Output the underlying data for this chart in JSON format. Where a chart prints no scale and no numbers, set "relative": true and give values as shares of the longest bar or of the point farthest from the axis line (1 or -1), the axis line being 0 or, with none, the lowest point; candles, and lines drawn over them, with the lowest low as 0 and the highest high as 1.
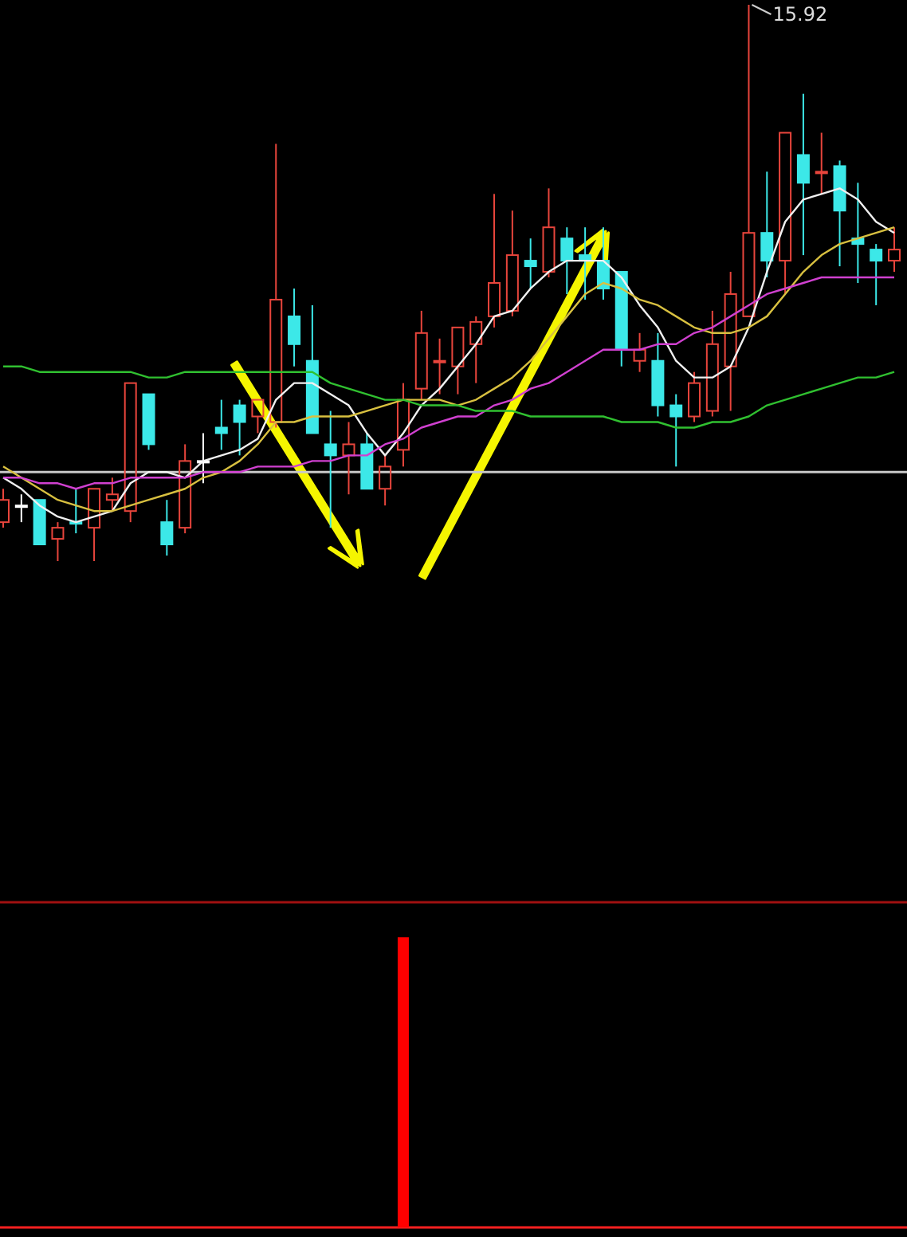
{
  "chart_data": [
    {
      "type": "candlestick",
      "relative": true,
      "tick_labels": false,
      "categories": [
        null,
        null,
        null,
        null,
        null,
        null,
        null,
        null,
        null,
        null,
        null,
        null,
        null,
        null,
        null,
        null,
        null,
        null,
        null,
        null,
        null,
        null,
        null,
        null,
        null,
        null,
        null,
        null,
        null,
        null,
        null,
        null,
        null,
        null,
        null,
        null,
        null,
        null,
        null,
        null,
        null,
        null,
        null,
        null,
        null,
        null,
        null,
        null,
        null,
        null
      ],
      "ohlc": [
        [
          0.07,
          0.13,
          0.06,
          0.11
        ],
        [
          0.1,
          0.12,
          0.07,
          0.1
        ],
        [
          0.11,
          0.11,
          0.03,
          0.03
        ],
        [
          0.04,
          0.07,
          0,
          0.06
        ],
        [
          0.07,
          0.13,
          0.05,
          0.07
        ],
        [
          0.06,
          0.13,
          0,
          0.13
        ],
        [
          0.11,
          0.15,
          0.09,
          0.12
        ],
        [
          0.09,
          0.32,
          0.07,
          0.32
        ],
        [
          0.3,
          0.3,
          0.2,
          0.21
        ],
        [
          0.07,
          0.11,
          0.01,
          0.03
        ],
        [
          0.06,
          0.21,
          0.05,
          0.18
        ],
        [
          0.18,
          0.23,
          0.14,
          0.18
        ],
        [
          0.24,
          0.29,
          0.2,
          0.23
        ],
        [
          0.28,
          0.29,
          0.19,
          0.25
        ],
        [
          0.26,
          0.29,
          0.23,
          0.29
        ],
        [
          0.25,
          0.75,
          0.24,
          0.47
        ],
        [
          0.44,
          0.49,
          0.35,
          0.39
        ],
        [
          0.36,
          0.46,
          0.23,
          0.23
        ],
        [
          0.21,
          0.27,
          0.06,
          0.19
        ],
        [
          0.19,
          0.25,
          0.12,
          0.21
        ],
        [
          0.21,
          0.23,
          0.13,
          0.13
        ],
        [
          0.13,
          0.19,
          0.1,
          0.17
        ],
        [
          0.2,
          0.32,
          0.17,
          0.29
        ],
        [
          0.31,
          0.45,
          0.29,
          0.41
        ],
        [
          0.36,
          0.4,
          0.3,
          0.36
        ],
        [
          0.35,
          0.42,
          0.3,
          0.42
        ],
        [
          0.39,
          0.44,
          0.32,
          0.43
        ],
        [
          0.44,
          0.66,
          0.42,
          0.5
        ],
        [
          0.45,
          0.63,
          0.44,
          0.55
        ],
        [
          0.54,
          0.58,
          0.49,
          0.53
        ],
        [
          0.52,
          0.67,
          0.51,
          0.6
        ],
        [
          0.58,
          0.6,
          0.48,
          0.54
        ],
        [
          0.55,
          0.6,
          0.47,
          0.54
        ],
        [
          0.54,
          0.6,
          0.47,
          0.49
        ],
        [
          0.52,
          0.52,
          0.35,
          0.38
        ],
        [
          0.36,
          0.41,
          0.34,
          0.38
        ],
        [
          0.36,
          0.41,
          0.26,
          0.28
        ],
        [
          0.28,
          0.3,
          0.17,
          0.26
        ],
        [
          0.26,
          0.34,
          0.25,
          0.32
        ],
        [
          0.27,
          0.45,
          0.26,
          0.39
        ],
        [
          0.35,
          0.52,
          0.27,
          0.48
        ],
        [
          0.44,
          1,
          0.44,
          0.59
        ],
        [
          0.59,
          0.7,
          0.51,
          0.54
        ],
        [
          0.54,
          0.77,
          0.48,
          0.77
        ],
        [
          0.73,
          0.84,
          0.55,
          0.68
        ],
        [
          0.7,
          0.77,
          0.66,
          0.7
        ],
        [
          0.71,
          0.72,
          0.53,
          0.63
        ],
        [
          0.58,
          0.68,
          0.5,
          0.57
        ],
        [
          0.56,
          0.57,
          0.46,
          0.54
        ],
        [
          0.54,
          0.6,
          0.52,
          0.56
        ]
      ],
      "colors": [
        "#e8453c",
        "#ffffff",
        "#3ce8e8",
        "#e8453c",
        "#3ce8e8",
        "#e8453c",
        "#e8453c",
        "#e8453c",
        "#3ce8e8",
        "#3ce8e8",
        "#e8453c",
        "#ffffff",
        "#3ce8e8",
        "#3ce8e8",
        "#e8453c",
        "#e8453c",
        "#3ce8e8",
        "#3ce8e8",
        "#3ce8e8",
        "#e8453c",
        "#3ce8e8",
        "#e8453c",
        "#e8453c",
        "#e8453c",
        "#e8453c",
        "#e8453c",
        "#e8453c",
        "#e8453c",
        "#e8453c",
        "#3ce8e8",
        "#e8453c",
        "#3ce8e8",
        "#3ce8e8",
        "#3ce8e8",
        "#3ce8e8",
        "#e8453c",
        "#3ce8e8",
        "#3ce8e8",
        "#e8453c",
        "#e8453c",
        "#e8453c",
        "#e8453c",
        "#3ce8e8",
        "#e8453c",
        "#3ce8e8",
        "#e8453c",
        "#3ce8e8",
        "#3ce8e8",
        "#3ce8e8",
        "#e8453c"
      ],
      "series": [
        {
          "type": "line",
          "color": "#f0f0f0",
          "values": [
            0.15,
            0.13,
            0.1,
            0.08,
            0.07,
            0.08,
            0.09,
            0.14,
            0.16,
            0.16,
            0.15,
            0.18,
            0.19,
            0.2,
            0.22,
            0.29,
            0.32,
            0.32,
            0.3,
            0.28,
            0.23,
            0.19,
            0.23,
            0.28,
            0.31,
            0.35,
            0.39,
            0.44,
            0.45,
            0.49,
            0.52,
            0.54,
            0.54,
            0.54,
            0.51,
            0.46,
            0.42,
            0.36,
            0.33,
            0.33,
            0.35,
            0.42,
            0.52,
            0.61,
            0.65,
            0.66,
            0.67,
            0.65,
            0.61,
            0.59
          ]
        },
        {
          "type": "line",
          "color": "#d8c040",
          "values": [
            0.17,
            0.15,
            0.13,
            0.11,
            0.1,
            0.09,
            0.09,
            0.1,
            0.11,
            0.12,
            0.13,
            0.15,
            0.16,
            0.18,
            0.21,
            0.25,
            0.25,
            0.26,
            0.26,
            0.26,
            0.27,
            0.28,
            0.29,
            0.29,
            0.29,
            0.28,
            0.29,
            0.31,
            0.33,
            0.36,
            0.4,
            0.44,
            0.48,
            0.5,
            0.49,
            0.47,
            0.46,
            0.44,
            0.42,
            0.41,
            0.41,
            0.42,
            0.44,
            0.48,
            0.52,
            0.55,
            0.57,
            0.58,
            0.59,
            0.6
          ]
        },
        {
          "type": "line",
          "color": "#d040d0",
          "values": [
            0.15,
            0.15,
            0.14,
            0.14,
            0.13,
            0.14,
            0.14,
            0.15,
            0.15,
            0.15,
            0.15,
            0.16,
            0.16,
            0.16,
            0.17,
            0.17,
            0.17,
            0.18,
            0.18,
            0.19,
            0.19,
            0.21,
            0.22,
            0.24,
            0.25,
            0.26,
            0.26,
            0.28,
            0.29,
            0.31,
            0.32,
            0.34,
            0.36,
            0.38,
            0.38,
            0.38,
            0.39,
            0.39,
            0.41,
            0.42,
            0.44,
            0.46,
            0.48,
            0.49,
            0.5,
            0.51,
            0.51,
            0.51,
            0.51,
            0.51
          ]
        },
        {
          "type": "line",
          "color": "#30c030",
          "values": [
            0.35,
            0.35,
            0.34,
            0.34,
            0.34,
            0.34,
            0.34,
            0.34,
            0.33,
            0.33,
            0.34,
            0.34,
            0.34,
            0.34,
            0.34,
            0.34,
            0.34,
            0.34,
            0.32,
            0.31,
            0.3,
            0.29,
            0.29,
            0.28,
            0.28,
            0.28,
            0.27,
            0.27,
            0.27,
            0.26,
            0.26,
            0.26,
            0.26,
            0.26,
            0.25,
            0.25,
            0.25,
            0.24,
            0.24,
            0.25,
            0.25,
            0.26,
            0.28,
            0.29,
            0.3,
            0.31,
            0.32,
            0.33,
            0.33,
            0.34
          ]
        }
      ],
      "ref_lines": [
        {
          "axis": "y",
          "value": 0.16,
          "color": "#c8c8c8"
        }
      ],
      "annotations": [
        "15.92"
      ]
    },
    {
      "type": "bar",
      "relative": true,
      "tick_labels": false,
      "color": "#ff0000",
      "categories": [
        null,
        null,
        null,
        null,
        null,
        null,
        null,
        null,
        null,
        null,
        null,
        null,
        null,
        null,
        null,
        null,
        null,
        null,
        null,
        null,
        null,
        null,
        null,
        null,
        null,
        null,
        null,
        null,
        null,
        null,
        null,
        null,
        null,
        null,
        null,
        null,
        null,
        null,
        null,
        null,
        null,
        null,
        null,
        null,
        null,
        null,
        null,
        null,
        null,
        null
      ],
      "values": [
        null,
        null,
        null,
        null,
        null,
        null,
        null,
        null,
        null,
        null,
        null,
        null,
        null,
        null,
        null,
        null,
        null,
        null,
        null,
        null,
        null,
        null,
        1,
        null,
        null,
        null,
        null,
        null,
        null,
        null,
        null,
        null,
        null,
        null,
        null,
        null,
        null,
        null,
        null,
        null,
        null,
        null,
        null,
        null,
        null,
        null,
        null,
        null,
        null,
        null
      ]
    }
  ]
}
